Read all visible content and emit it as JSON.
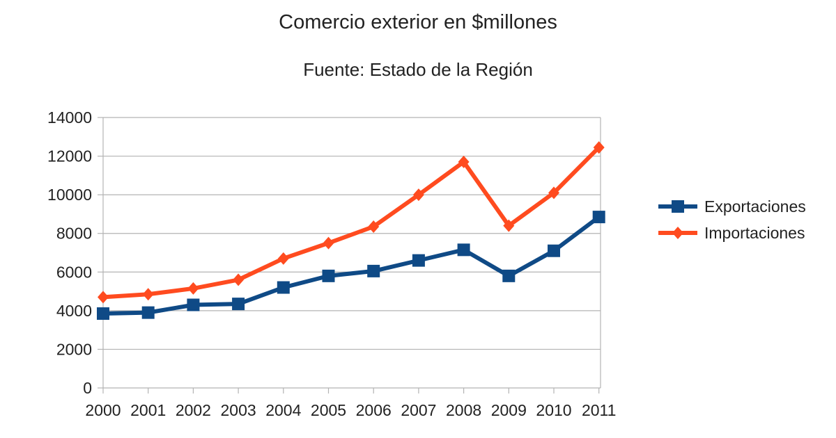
{
  "chart_data": {
    "type": "line",
    "title": "Comercio exterior en $millones",
    "subtitle": "Fuente: Estado de la Región",
    "xlabel": "",
    "ylabel": "",
    "categories": [
      "2000",
      "2001",
      "2002",
      "2003",
      "2004",
      "2005",
      "2006",
      "2007",
      "2008",
      "2009",
      "2010",
      "2011"
    ],
    "ylim": [
      0,
      14000
    ],
    "yticks": [
      0,
      2000,
      4000,
      6000,
      8000,
      10000,
      12000,
      14000
    ],
    "grid": "horizontal",
    "legend_position": "right",
    "series": [
      {
        "name": "Exportaciones",
        "color": "#0f4a86",
        "marker": "square",
        "values": [
          3850,
          3900,
          4300,
          4350,
          5200,
          5800,
          6050,
          6600,
          7150,
          5800,
          7100,
          8850
        ]
      },
      {
        "name": "Importaciones",
        "color": "#ff4b1f",
        "marker": "diamond",
        "values": [
          4700,
          4850,
          5150,
          5600,
          6700,
          7500,
          8350,
          10000,
          11700,
          8400,
          10100,
          12450
        ]
      }
    ]
  }
}
